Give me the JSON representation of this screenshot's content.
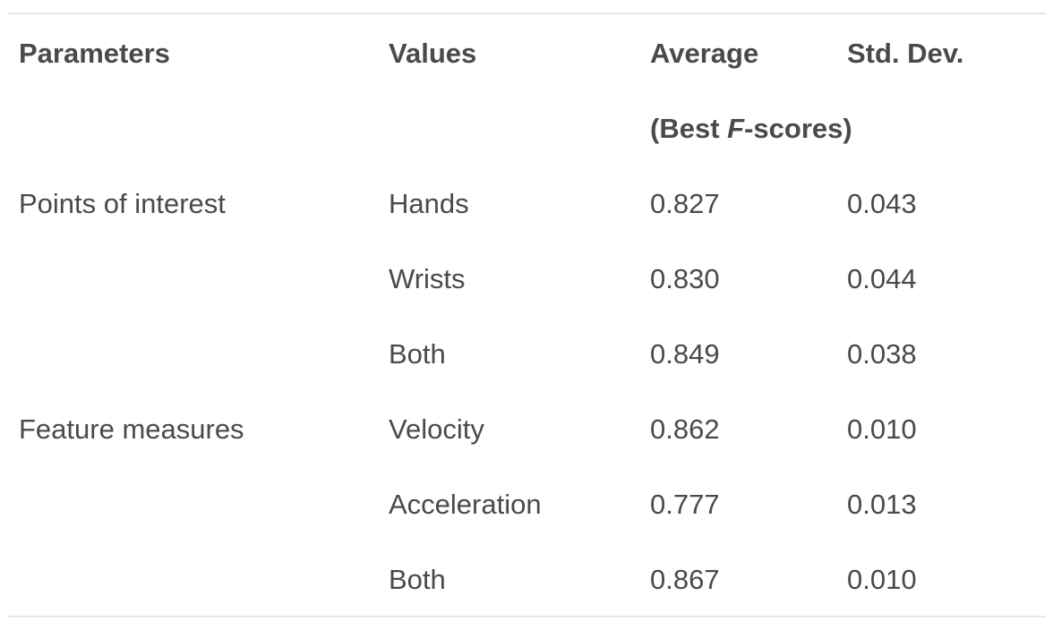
{
  "table": {
    "headers": {
      "parameters": "Parameters",
      "values": "Values",
      "average": "Average",
      "std_dev": "Std. Dev."
    },
    "subheader": {
      "prefix": "(Best ",
      "italic": "F",
      "suffix": "-scores)"
    },
    "rows": [
      {
        "parameter": "Points of interest",
        "value": "Hands",
        "average": "0.827",
        "std_dev": "0.043"
      },
      {
        "parameter": "",
        "value": "Wrists",
        "average": "0.830",
        "std_dev": "0.044"
      },
      {
        "parameter": "",
        "value": "Both",
        "average": "0.849",
        "std_dev": "0.038"
      },
      {
        "parameter": "Feature measures",
        "value": "Velocity",
        "average": "0.862",
        "std_dev": "0.010"
      },
      {
        "parameter": "",
        "value": "Acceleration",
        "average": "0.777",
        "std_dev": "0.013"
      },
      {
        "parameter": "",
        "value": "Both",
        "average": "0.867",
        "std_dev": "0.010"
      }
    ]
  }
}
